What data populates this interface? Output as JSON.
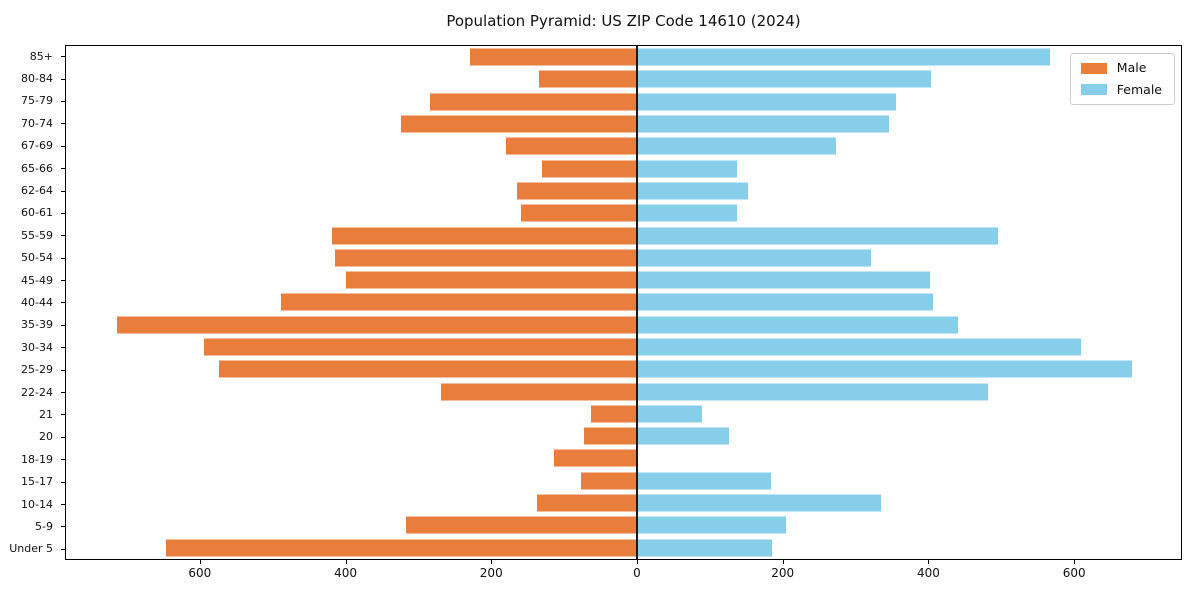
{
  "chart_data": {
    "type": "bar",
    "variant": "population-pyramid-horizontal-diverging",
    "title": "Population Pyramid: US ZIP Code 14610 (2024)",
    "categories": [
      "85+",
      "80-84",
      "75-79",
      "70-74",
      "67-69",
      "65-66",
      "62-64",
      "60-61",
      "55-59",
      "50-54",
      "45-49",
      "40-44",
      "35-39",
      "30-34",
      "25-29",
      "22-24",
      "21",
      "20",
      "18-19",
      "15-17",
      "10-14",
      "5-9",
      "Under 5"
    ],
    "series": [
      {
        "name": "Male",
        "color": "#E87D3C",
        "direction": "left",
        "values": [
          230,
          135,
          285,
          325,
          180,
          130,
          165,
          160,
          420,
          415,
          400,
          490,
          715,
          595,
          575,
          270,
          63,
          73,
          114,
          77,
          138,
          318,
          647
        ]
      },
      {
        "name": "Female",
        "color": "#87CEEB",
        "direction": "right",
        "values": [
          568,
          404,
          356,
          346,
          273,
          137,
          153,
          137,
          497,
          322,
          403,
          407,
          442,
          610,
          681,
          482,
          89,
          126,
          0,
          184,
          336,
          205,
          185
        ]
      }
    ],
    "x_tick_values": [
      -600,
      -400,
      -200,
      0,
      200,
      400,
      600
    ],
    "x_tick_labels": [
      "600",
      "400",
      "200",
      "0",
      "200",
      "400",
      "600"
    ],
    "xlim": [
      -785,
      748
    ],
    "grid": false,
    "legend": {
      "position": "upper-right"
    },
    "zero_line_color": "#1a1a1a",
    "axis_color": "#000000",
    "background": "#ffffff"
  }
}
